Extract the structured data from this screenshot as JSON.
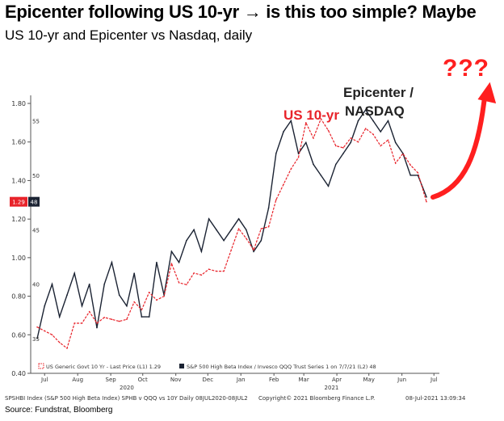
{
  "title": "Epicenter following US 10-yr → is this too simple? Maybe",
  "subtitle": "US 10-yr and Epicenter vs Nasdaq, daily",
  "source": "Source: Fundstrat, Bloomberg",
  "footer": {
    "left": "SPSHBI Index (S&P 500 High Beta Index) SPHB v QQQ vs 10Y  Daily 08JUL2020-08JUL2",
    "mid": "Copyright© 2021 Bloomberg Finance L.P.",
    "right": "08-Jul-2021 13:09:34"
  },
  "annotations": {
    "us10": "US 10-yr",
    "epicenter_line1": "Epicenter /",
    "epicenter_line2": "NASDAQ",
    "question": "???"
  },
  "colors": {
    "us10": "#e8232a",
    "epicenter": "#1b2333",
    "arrow": "#ff1f1f",
    "last_value_badge": "#e8232a"
  },
  "chart_data": {
    "type": "line",
    "x": [
      "2020-07-08",
      "2020-07-15",
      "2020-07-22",
      "2020-07-29",
      "2020-08-05",
      "2020-08-12",
      "2020-08-19",
      "2020-08-26",
      "2020-09-02",
      "2020-09-09",
      "2020-09-16",
      "2020-09-23",
      "2020-09-30",
      "2020-10-07",
      "2020-10-14",
      "2020-10-21",
      "2020-10-28",
      "2020-11-04",
      "2020-11-11",
      "2020-11-18",
      "2020-11-25",
      "2020-12-02",
      "2020-12-09",
      "2020-12-16",
      "2020-12-23",
      "2020-12-30",
      "2021-01-06",
      "2021-01-13",
      "2021-01-20",
      "2021-01-27",
      "2021-02-03",
      "2021-02-10",
      "2021-02-17",
      "2021-02-24",
      "2021-03-03",
      "2021-03-10",
      "2021-03-17",
      "2021-03-24",
      "2021-03-31",
      "2021-04-07",
      "2021-04-14",
      "2021-04-21",
      "2021-04-28",
      "2021-05-05",
      "2021-05-12",
      "2021-05-19",
      "2021-05-26",
      "2021-06-02",
      "2021-06-09",
      "2021-06-16",
      "2021-06-23",
      "2021-06-30",
      "2021-07-08"
    ],
    "series": [
      {
        "name": "US Generic Govt 10 Yr - Last Price (L1) 1.29",
        "axis": "left",
        "values": [
          0.64,
          0.62,
          0.6,
          0.56,
          0.53,
          0.66,
          0.66,
          0.72,
          0.66,
          0.69,
          0.68,
          0.67,
          0.68,
          0.77,
          0.73,
          0.82,
          0.78,
          0.8,
          0.97,
          0.87,
          0.86,
          0.92,
          0.91,
          0.94,
          0.93,
          0.93,
          1.04,
          1.15,
          1.1,
          1.04,
          1.15,
          1.16,
          1.3,
          1.38,
          1.46,
          1.52,
          1.7,
          1.62,
          1.72,
          1.66,
          1.58,
          1.57,
          1.62,
          1.6,
          1.67,
          1.64,
          1.58,
          1.61,
          1.49,
          1.54,
          1.48,
          1.44,
          1.29
        ]
      },
      {
        "name": "S&P 500 High Beta Index / Invesco QQQ Trust Series 1 on 7/7/21 (L2) 48",
        "axis": "right",
        "values": [
          35,
          38,
          40,
          37,
          39,
          41,
          38,
          40,
          36,
          40,
          42,
          39,
          38,
          41,
          37,
          37,
          42,
          39,
          43,
          42,
          44,
          45,
          43,
          46,
          45,
          44,
          45,
          46,
          45,
          43,
          44,
          47,
          52,
          54,
          55,
          52,
          53,
          51,
          50,
          49,
          51,
          52,
          53,
          55,
          56,
          55,
          54,
          55,
          53,
          52,
          50,
          50,
          48
        ]
      }
    ],
    "left_axis": {
      "ticks": [
        0.4,
        0.6,
        0.8,
        1.0,
        1.2,
        1.4,
        1.6,
        1.8
      ],
      "ylim": [
        0.4,
        1.8
      ],
      "last_value": "1.29"
    },
    "right_axis": {
      "ticks": [
        35,
        40,
        45,
        50,
        55
      ],
      "last_value": "48"
    },
    "x_tick_labels": [
      "Jul",
      "Aug",
      "Sep",
      "Oct",
      "Nov",
      "Dec",
      "Jan",
      "Feb",
      "Mar",
      "Apr",
      "May",
      "Jun",
      "Jul"
    ],
    "year_labels": [
      "2020",
      "2021"
    ],
    "legend": "bottom-left",
    "grid": false
  }
}
